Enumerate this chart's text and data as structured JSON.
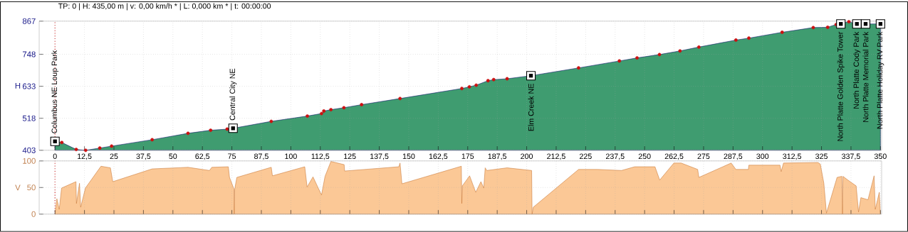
{
  "chart_data": [
    {
      "type": "area",
      "title": "TP: 0 | H: 435,00 m | v: 0,00 km/h * | L: 0,000 km * | t: 00:00:00",
      "ylabel": "H",
      "series": [
        {
          "color": "#3f9c70",
          "x": [
            0,
            2.9,
            9,
            13,
            19,
            24,
            41.2,
            56.4,
            66,
            73,
            75.5,
            91.7,
            107,
            113,
            114,
            117,
            122.5,
            130,
            146.3,
            172.5,
            175.7,
            178.6,
            183.6,
            186,
            191.7,
            201.8,
            222,
            239.3,
            246.8,
            256.3,
            265,
            273,
            288.7,
            294.2,
            308.3,
            321.5,
            327.6,
            331.2,
            336.6,
            339.7,
            342.7,
            350
          ],
          "values": [
            435,
            431,
            406,
            403,
            411,
            418,
            441,
            464,
            475,
            479,
            482,
            507,
            526,
            535,
            544,
            549,
            556,
            567,
            589,
            625,
            631,
            637,
            653,
            657,
            660,
            671,
            699,
            724,
            735,
            747,
            760,
            774,
            799,
            806,
            827,
            844,
            845,
            855,
            865,
            857,
            857,
            857
          ]
        },
        {
          "type": "scatter",
          "color": "#cc1111",
          "marker": "circle",
          "x": [
            2.9,
            9,
            13,
            19,
            24,
            41.2,
            56.4,
            66,
            73,
            91.7,
            107,
            113,
            114,
            117,
            122.5,
            130,
            146.3,
            172.5,
            175.7,
            178.6,
            183.6,
            186,
            191.7,
            222,
            239.3,
            246.8,
            256.3,
            265,
            273,
            288.7,
            294.2,
            308.3,
            321.5,
            327.6,
            331.2,
            336.6
          ],
          "values": [
            431,
            406,
            403,
            411,
            418,
            441,
            464,
            475,
            479,
            507,
            526,
            535,
            544,
            549,
            556,
            567,
            589,
            625,
            631,
            637,
            653,
            657,
            660,
            699,
            724,
            735,
            747,
            760,
            774,
            799,
            806,
            827,
            844,
            845,
            855,
            865
          ]
        }
      ],
      "xlim": [
        -6.7,
        350.5
      ],
      "ylim": [
        403,
        867
      ],
      "xticks": [
        0,
        {
          "value": 12.5,
          "label": "12,5"
        },
        25,
        {
          "value": 37.5,
          "label": "37,5"
        },
        50,
        {
          "value": 62.5,
          "label": "62,5"
        },
        75,
        {
          "value": 87.5,
          "label": "87,5"
        },
        100,
        {
          "value": 112.5,
          "label": "112,5"
        },
        125,
        {
          "value": 137.5,
          "label": "137,5"
        },
        150,
        {
          "value": 162.5,
          "label": "162,5"
        },
        175,
        {
          "value": 187.5,
          "label": "187,5"
        },
        200,
        {
          "value": 212.5,
          "label": "212,5"
        },
        225,
        {
          "value": 237.5,
          "label": "237,5"
        },
        250,
        {
          "value": 262.5,
          "label": "262,5"
        },
        275,
        {
          "value": 287.5,
          "label": "287,5"
        },
        300,
        {
          "value": 312.5,
          "label": "312,5"
        },
        325,
        {
          "value": 337.5,
          "label": "337,5"
        },
        350
      ],
      "yticks": [
        403,
        518,
        633,
        748,
        867
      ],
      "grid": true,
      "ref_lines": [
        {
          "axis": "x",
          "value": 0,
          "color": "#cc1111",
          "line_style": "dotted"
        }
      ],
      "annotations": [
        {
          "text": "Columbus NE Loup Park",
          "x": 0,
          "y": 435
        },
        {
          "text": "Central City NE",
          "x": 75.5,
          "y": 482
        },
        {
          "text": "Elm Creek NE",
          "x": 201.8,
          "y": 671
        },
        {
          "text": "North Platte Golden Spike Tower",
          "x": 333.2,
          "y": 857
        },
        {
          "text": "North Platte Cody Park",
          "x": 340,
          "y": 857
        },
        {
          "text": "North Platte Memorial Park",
          "x": 343.7,
          "y": 857
        },
        {
          "text": "North Platte Holiday RV Park",
          "x": 350,
          "y": 857
        }
      ]
    },
    {
      "type": "area",
      "ylabel": "V",
      "series": [
        {
          "color": "#fbc896",
          "x": [
            0,
            0.8,
            1.8,
            2.8,
            8.9,
            9.1,
            10.4,
            10.9,
            12.9,
            19.5,
            23.5,
            24.5,
            41.2,
            56.4,
            65.5,
            66.5,
            73.5,
            74,
            75.9,
            76,
            76.2,
            77.1,
            91.7,
            92.2,
            105.9,
            106.9,
            109.4,
            113,
            114.5,
            117,
            122.6,
            122.8,
            145.8,
            146.3,
            147.1,
            172.3,
            172.5,
            172.7,
            175.8,
            178.4,
            180.6,
            181.8,
            182.4,
            183.1,
            191.7,
            202.1,
            202.3,
            202.8,
            222,
            230.1,
            240.2,
            245.8,
            254.4,
            256.4,
            262.4,
            265.5,
            272.5,
            273,
            286.7,
            288.7,
            294,
            294.2,
            307.4,
            307.9,
            308.9,
            323.5,
            324.5,
            326,
            327.1,
            331.6,
            333.6,
            333.9,
            334.1,
            336.2,
            339.7,
            340.7,
            341.7,
            344.7,
            347.3,
            347.8,
            349.5,
            350
          ],
          "values": [
            0,
            29,
            9,
            49,
            61,
            20,
            58,
            13,
            49,
            90,
            87,
            61,
            85,
            88,
            82,
            88,
            89,
            69,
            47,
            0,
            47,
            69,
            88,
            72,
            89,
            51,
            70,
            36,
            71,
            99,
            93,
            81,
            89,
            96,
            57,
            90,
            20,
            53,
            72,
            41,
            61,
            49,
            87,
            82,
            87,
            82,
            0,
            13,
            84,
            84,
            82,
            89,
            89,
            64,
            96,
            96,
            84,
            69,
            96,
            84,
            84,
            92,
            92,
            80,
            96,
            97,
            94,
            58,
            2,
            69,
            71,
            0,
            71,
            64,
            53,
            4,
            31,
            27,
            72,
            9,
            41,
            0
          ]
        }
      ],
      "xlim": [
        -6.7,
        350.5
      ],
      "ylim": [
        0,
        100
      ],
      "yticks": [
        0,
        50,
        100
      ],
      "xticks": [
        0,
        {
          "value": 12.5,
          "label": null
        },
        25,
        {
          "value": 37.5,
          "label": null
        },
        50,
        {
          "value": 62.5,
          "label": null
        },
        75,
        {
          "value": 87.5,
          "label": null
        },
        100,
        {
          "value": 112.5,
          "label": null
        },
        125,
        {
          "value": 137.5,
          "label": null
        },
        150,
        {
          "value": 162.5,
          "label": null
        },
        175,
        {
          "value": 187.5,
          "label": null
        },
        200,
        {
          "value": 212.5,
          "label": null
        },
        225,
        {
          "value": 237.5,
          "label": null
        },
        250,
        {
          "value": 262.5,
          "label": null
        },
        275,
        {
          "value": 287.5,
          "label": null
        },
        300,
        {
          "value": 312.5,
          "label": null
        },
        325,
        {
          "value": 337.5,
          "label": null
        },
        350
      ],
      "tick_labels": "y",
      "grid": true,
      "ref_lines": [
        {
          "axis": "x",
          "value": 0,
          "color": "#cc1111",
          "line_style": "dotted"
        }
      ]
    }
  ]
}
